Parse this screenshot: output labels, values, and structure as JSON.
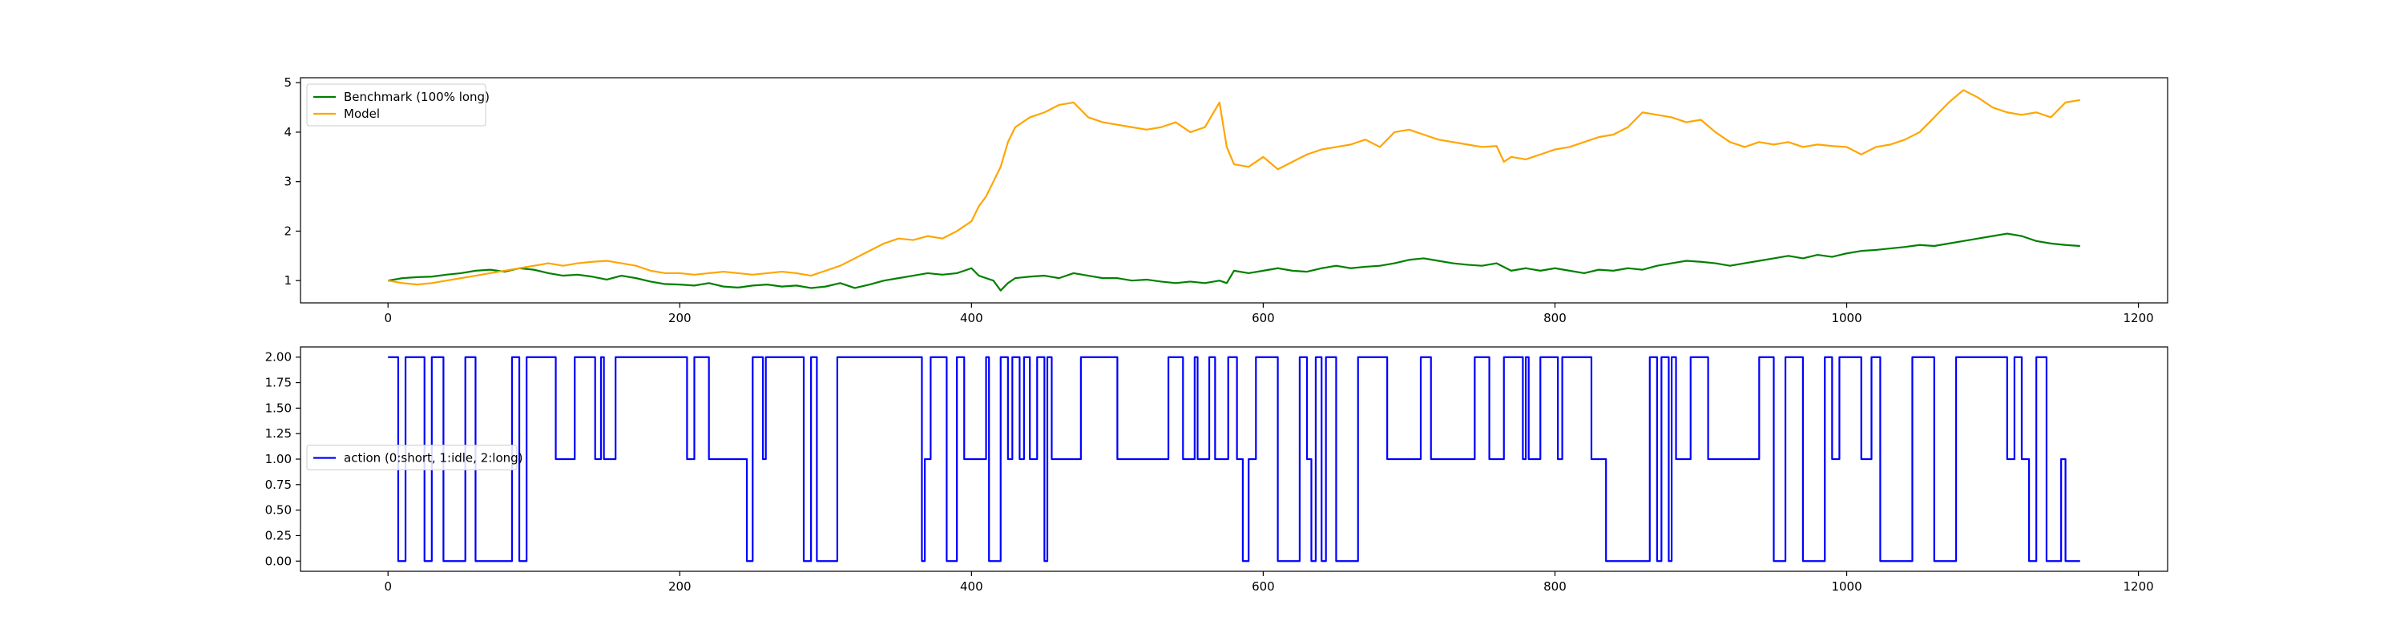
{
  "chart_data": [
    {
      "type": "line",
      "xlim": [
        -60,
        1220
      ],
      "ylim": [
        0.55,
        5.1
      ],
      "xticks": [
        0,
        200,
        400,
        600,
        800,
        1000,
        1200
      ],
      "yticks": [
        1,
        2,
        3,
        4,
        5
      ],
      "grid": false,
      "legend_position": "top-left",
      "series": [
        {
          "name": "Benchmark (100% long)",
          "color": "#008000",
          "x": [
            0,
            10,
            20,
            30,
            40,
            50,
            60,
            70,
            80,
            90,
            100,
            110,
            120,
            130,
            140,
            150,
            160,
            170,
            180,
            190,
            200,
            210,
            220,
            230,
            240,
            250,
            260,
            270,
            280,
            290,
            300,
            310,
            320,
            330,
            340,
            350,
            360,
            370,
            380,
            390,
            395,
            400,
            405,
            410,
            415,
            420,
            425,
            430,
            440,
            450,
            460,
            470,
            480,
            490,
            500,
            510,
            520,
            530,
            540,
            550,
            560,
            570,
            575,
            580,
            590,
            600,
            610,
            620,
            630,
            640,
            650,
            660,
            670,
            680,
            690,
            700,
            710,
            720,
            730,
            740,
            750,
            760,
            770,
            780,
            790,
            800,
            810,
            820,
            830,
            840,
            850,
            860,
            870,
            880,
            890,
            900,
            910,
            920,
            930,
            940,
            950,
            960,
            970,
            980,
            990,
            1000,
            1010,
            1020,
            1030,
            1040,
            1050,
            1060,
            1070,
            1080,
            1090,
            1100,
            1110,
            1120,
            1130,
            1140,
            1150,
            1160
          ],
          "y": [
            1.0,
            1.05,
            1.07,
            1.08,
            1.12,
            1.15,
            1.2,
            1.22,
            1.18,
            1.25,
            1.22,
            1.15,
            1.1,
            1.12,
            1.08,
            1.02,
            1.1,
            1.05,
            0.98,
            0.93,
            0.92,
            0.9,
            0.95,
            0.88,
            0.86,
            0.9,
            0.92,
            0.88,
            0.9,
            0.85,
            0.88,
            0.95,
            0.85,
            0.92,
            1.0,
            1.05,
            1.1,
            1.15,
            1.12,
            1.15,
            1.2,
            1.25,
            1.1,
            1.05,
            1.0,
            0.8,
            0.95,
            1.05,
            1.08,
            1.1,
            1.05,
            1.15,
            1.1,
            1.05,
            1.05,
            1.0,
            1.02,
            0.98,
            0.95,
            0.98,
            0.95,
            1.0,
            0.95,
            1.2,
            1.15,
            1.2,
            1.25,
            1.2,
            1.18,
            1.25,
            1.3,
            1.25,
            1.28,
            1.3,
            1.35,
            1.42,
            1.45,
            1.4,
            1.35,
            1.32,
            1.3,
            1.35,
            1.2,
            1.25,
            1.2,
            1.25,
            1.2,
            1.15,
            1.22,
            1.2,
            1.25,
            1.22,
            1.3,
            1.35,
            1.4,
            1.38,
            1.35,
            1.3,
            1.35,
            1.4,
            1.45,
            1.5,
            1.45,
            1.52,
            1.48,
            1.55,
            1.6,
            1.62,
            1.65,
            1.68,
            1.72,
            1.7,
            1.75,
            1.8,
            1.85,
            1.9,
            1.95,
            1.9,
            1.8,
            1.75,
            1.72,
            1.7
          ]
        },
        {
          "name": "Model",
          "color": "#FFA500",
          "x": [
            0,
            10,
            20,
            30,
            40,
            50,
            60,
            70,
            80,
            90,
            100,
            110,
            120,
            130,
            140,
            150,
            160,
            170,
            180,
            190,
            200,
            210,
            220,
            230,
            240,
            250,
            260,
            270,
            280,
            290,
            300,
            310,
            320,
            330,
            340,
            350,
            360,
            370,
            380,
            390,
            400,
            405,
            410,
            415,
            420,
            425,
            430,
            440,
            450,
            460,
            470,
            480,
            490,
            500,
            510,
            520,
            530,
            540,
            550,
            560,
            570,
            575,
            580,
            590,
            600,
            610,
            620,
            630,
            640,
            650,
            660,
            670,
            680,
            690,
            700,
            710,
            720,
            730,
            740,
            750,
            760,
            765,
            770,
            780,
            790,
            800,
            810,
            820,
            830,
            840,
            850,
            860,
            870,
            880,
            890,
            900,
            910,
            920,
            930,
            940,
            950,
            960,
            970,
            980,
            990,
            1000,
            1010,
            1020,
            1030,
            1040,
            1050,
            1060,
            1070,
            1080,
            1090,
            1100,
            1110,
            1120,
            1130,
            1140,
            1150,
            1160
          ],
          "y": [
            1.0,
            0.95,
            0.92,
            0.95,
            1.0,
            1.05,
            1.1,
            1.15,
            1.2,
            1.25,
            1.3,
            1.35,
            1.3,
            1.35,
            1.38,
            1.4,
            1.35,
            1.3,
            1.2,
            1.15,
            1.15,
            1.12,
            1.15,
            1.18,
            1.15,
            1.12,
            1.15,
            1.18,
            1.15,
            1.1,
            1.2,
            1.3,
            1.45,
            1.6,
            1.75,
            1.85,
            1.82,
            1.9,
            1.85,
            2.0,
            2.2,
            2.5,
            2.7,
            3.0,
            3.3,
            3.8,
            4.1,
            4.3,
            4.4,
            4.55,
            4.6,
            4.3,
            4.2,
            4.15,
            4.1,
            4.05,
            4.1,
            4.2,
            4.0,
            4.1,
            4.6,
            3.7,
            3.35,
            3.3,
            3.5,
            3.25,
            3.4,
            3.55,
            3.65,
            3.7,
            3.75,
            3.85,
            3.7,
            4.0,
            4.05,
            3.95,
            3.85,
            3.8,
            3.75,
            3.7,
            3.72,
            3.4,
            3.5,
            3.45,
            3.55,
            3.65,
            3.7,
            3.8,
            3.9,
            3.95,
            4.1,
            4.4,
            4.35,
            4.3,
            4.2,
            4.25,
            4.0,
            3.8,
            3.7,
            3.8,
            3.75,
            3.8,
            3.7,
            3.75,
            3.72,
            3.7,
            3.55,
            3.7,
            3.75,
            3.85,
            4.0,
            4.3,
            4.6,
            4.85,
            4.7,
            4.5,
            4.4,
            4.35,
            4.4,
            4.3,
            4.6,
            4.65
          ]
        }
      ]
    },
    {
      "type": "line",
      "xlim": [
        -60,
        1220
      ],
      "ylim": [
        -0.1,
        2.1
      ],
      "xticks": [
        0,
        200,
        400,
        600,
        800,
        1000,
        1200
      ],
      "yticks": [
        0.0,
        0.25,
        0.5,
        0.75,
        1.0,
        1.25,
        1.5,
        1.75,
        2.0
      ],
      "ytick_labels": [
        "0.00",
        "0.25",
        "0.50",
        "0.75",
        "1.00",
        "1.25",
        "1.50",
        "1.75",
        "2.00"
      ],
      "grid": false,
      "legend_position": "center-left",
      "series": [
        {
          "name": "action (0:short, 1:idle, 2:long)",
          "color": "#0000FF",
          "step": true,
          "x": [
            0,
            7,
            12,
            25,
            30,
            38,
            53,
            60,
            85,
            90,
            95,
            115,
            128,
            142,
            146,
            148,
            156,
            205,
            210,
            220,
            246,
            250,
            257,
            259,
            285,
            290,
            294,
            308,
            366,
            368,
            372,
            383,
            390,
            395,
            410,
            412,
            420,
            425,
            428,
            433,
            436,
            440,
            445,
            450,
            452,
            455,
            475,
            500,
            535,
            545,
            553,
            555,
            563,
            567,
            576,
            582,
            586,
            590,
            595,
            610,
            625,
            630,
            633,
            636,
            640,
            643,
            650,
            665,
            685,
            708,
            715,
            745,
            755,
            765,
            778,
            780,
            782,
            790,
            802,
            805,
            825,
            835,
            865,
            870,
            873,
            878,
            880,
            883,
            893,
            905,
            940,
            950,
            958,
            970,
            985,
            990,
            995,
            1010,
            1017,
            1023,
            1045,
            1060,
            1075,
            1110,
            1115,
            1120,
            1125,
            1130,
            1137,
            1147,
            1150,
            1155,
            1160
          ],
          "y": [
            2,
            0,
            2,
            0,
            2,
            0,
            2,
            0,
            2,
            0,
            2,
            1,
            2,
            1,
            2,
            1,
            2,
            1,
            2,
            1,
            0,
            2,
            1,
            2,
            0,
            2,
            0,
            2,
            0,
            1,
            2,
            0,
            2,
            1,
            2,
            0,
            2,
            1,
            2,
            1,
            2,
            1,
            2,
            0,
            2,
            1,
            2,
            1,
            2,
            1,
            2,
            1,
            2,
            1,
            2,
            1,
            0,
            1,
            2,
            0,
            2,
            1,
            0,
            2,
            0,
            2,
            0,
            2,
            1,
            2,
            1,
            2,
            1,
            2,
            1,
            2,
            1,
            2,
            1,
            2,
            1,
            0,
            2,
            0,
            2,
            0,
            2,
            1,
            2,
            1,
            2,
            0,
            2,
            0,
            2,
            1,
            2,
            1,
            2,
            0,
            2,
            0,
            2,
            1,
            2,
            1,
            0,
            2,
            0,
            1,
            0,
            0,
            0
          ]
        }
      ]
    }
  ]
}
